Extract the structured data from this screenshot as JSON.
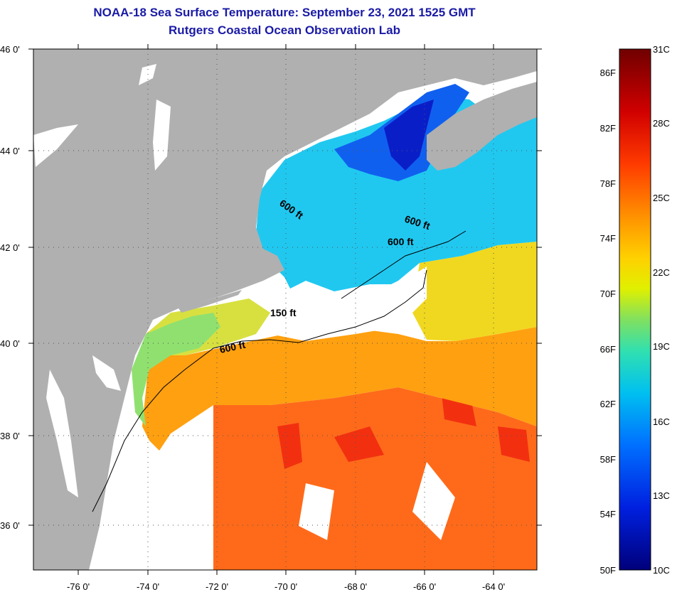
{
  "title": {
    "line1": "NOAA-18 Sea Surface Temperature:  September 23, 2021 1525 GMT",
    "line2": "Rutgers Coastal Ocean Observation Lab"
  },
  "map": {
    "lat_labels": [
      "46 0'",
      "44 0'",
      "42 0'",
      "40 0'",
      "38 0'",
      "36 0'"
    ],
    "lon_labels": [
      "-76 0'",
      "-74 0'",
      "-72 0'",
      "-70 0'",
      "-68 0'",
      "-66 0'",
      "-64 0'"
    ],
    "contour_labels": [
      "600 ft",
      "600 ft",
      "600 ft",
      "150 ft",
      "600 ft"
    ]
  },
  "colorbar": {
    "fahrenheit": [
      "86F",
      "82F",
      "78F",
      "74F",
      "70F",
      "66F",
      "62F",
      "58F",
      "54F",
      "50F"
    ],
    "celsius": [
      "31C",
      "28C",
      "25C",
      "22C",
      "19C",
      "16C",
      "13C",
      "10C"
    ],
    "colors": [
      "#7a0000",
      "#d40000",
      "#ff3300",
      "#ff7a00",
      "#ffb400",
      "#e8e800",
      "#a8e040",
      "#40e0a0",
      "#00c8e0",
      "#0080ff",
      "#0030ff",
      "#00008c"
    ]
  },
  "colors": {
    "land": "#b0b0b0",
    "cloud": "#ffffff",
    "title": "#1a1aa6"
  }
}
